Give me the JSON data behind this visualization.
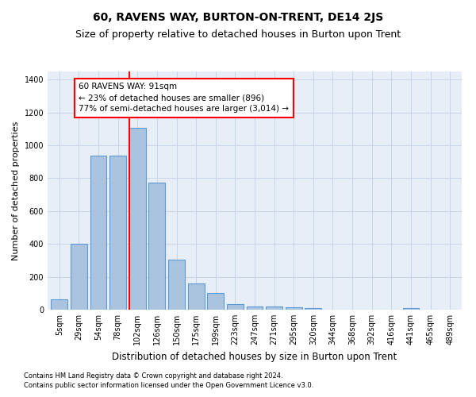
{
  "title": "60, RAVENS WAY, BURTON-ON-TRENT, DE14 2JS",
  "subtitle": "Size of property relative to detached houses in Burton upon Trent",
  "xlabel": "Distribution of detached houses by size in Burton upon Trent",
  "ylabel": "Number of detached properties",
  "footnote1": "Contains HM Land Registry data © Crown copyright and database right 2024.",
  "footnote2": "Contains public sector information licensed under the Open Government Licence v3.0.",
  "bar_labels": [
    "5sqm",
    "29sqm",
    "54sqm",
    "78sqm",
    "102sqm",
    "126sqm",
    "150sqm",
    "175sqm",
    "199sqm",
    "223sqm",
    "247sqm",
    "271sqm",
    "295sqm",
    "320sqm",
    "344sqm",
    "368sqm",
    "392sqm",
    "416sqm",
    "441sqm",
    "465sqm",
    "489sqm"
  ],
  "bar_values": [
    65,
    400,
    940,
    940,
    1105,
    775,
    305,
    160,
    100,
    33,
    17,
    17,
    15,
    8,
    0,
    0,
    0,
    0,
    10,
    0,
    0
  ],
  "bar_color": "#aac4e0",
  "bar_edgecolor": "#5b9bd5",
  "vline_color": "red",
  "vline_pos": 3.57,
  "annotation_text": "60 RAVENS WAY: 91sqm\n← 23% of detached houses are smaller (896)\n77% of semi-detached houses are larger (3,014) →",
  "annotation_box_edgecolor": "red",
  "annotation_text_color": "black",
  "ylim": [
    0,
    1450
  ],
  "yticks": [
    0,
    200,
    400,
    600,
    800,
    1000,
    1200,
    1400
  ],
  "grid_color": "#c8d4e8",
  "bg_color": "#e8eef8",
  "title_fontsize": 10,
  "subtitle_fontsize": 9,
  "xlabel_fontsize": 8.5,
  "ylabel_fontsize": 8,
  "tick_fontsize": 7,
  "annotation_fontsize": 7.5,
  "footnote_fontsize": 6
}
